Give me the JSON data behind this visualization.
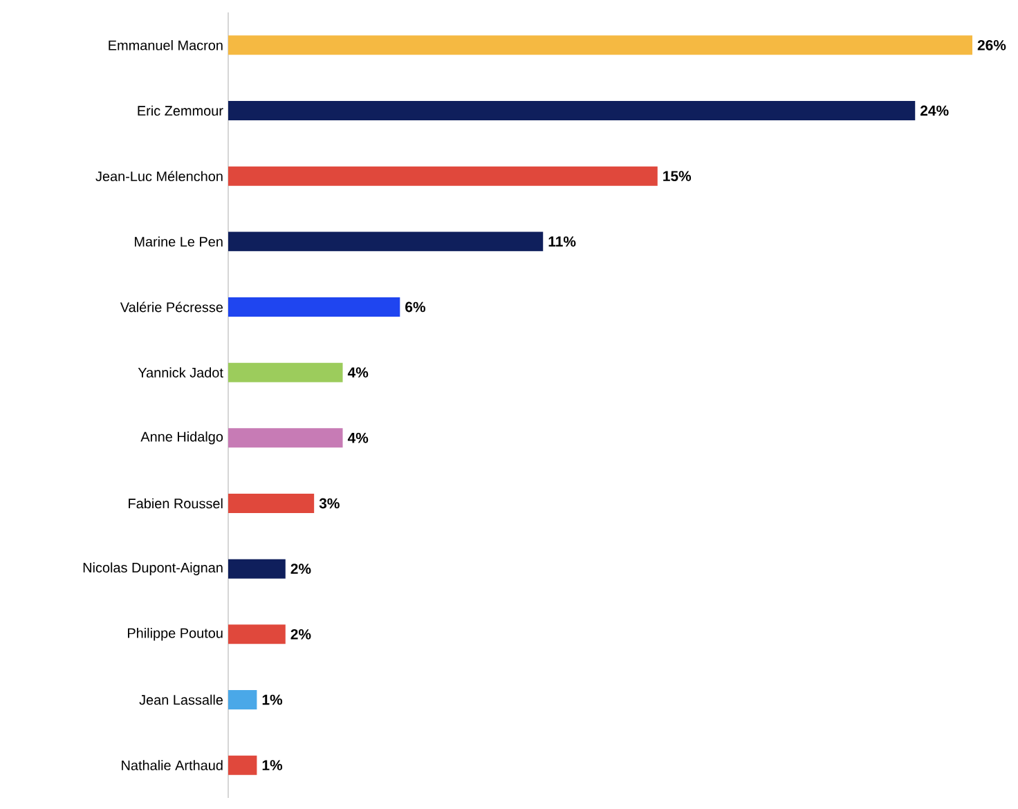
{
  "chart_data": {
    "type": "bar",
    "orientation": "horizontal",
    "categories": [
      "Emmanuel Macron",
      "Eric Zemmour",
      "Jean-Luc Mélenchon",
      "Marine Le Pen",
      "Valérie Pécresse",
      "Yannick Jadot",
      "Anne Hidalgo",
      "Fabien Roussel",
      "Nicolas Dupont-Aignan",
      "Philippe Poutou",
      "Jean Lassalle",
      "Nathalie Arthaud"
    ],
    "values": [
      26,
      24,
      15,
      11,
      6,
      4,
      4,
      3,
      2,
      2,
      1,
      1
    ],
    "value_labels": [
      "26%",
      "24%",
      "15%",
      "11%",
      "6%",
      "4%",
      "4%",
      "3%",
      "2%",
      "2%",
      "1%",
      "1%"
    ],
    "colors": [
      "#f5b942",
      "#0f1f5c",
      "#e0483c",
      "#0f1f5c",
      "#1f45f0",
      "#9ccc5c",
      "#c77bb5",
      "#e0483c",
      "#0f1f5c",
      "#e0483c",
      "#4aa8e8",
      "#e0483c"
    ]
  }
}
